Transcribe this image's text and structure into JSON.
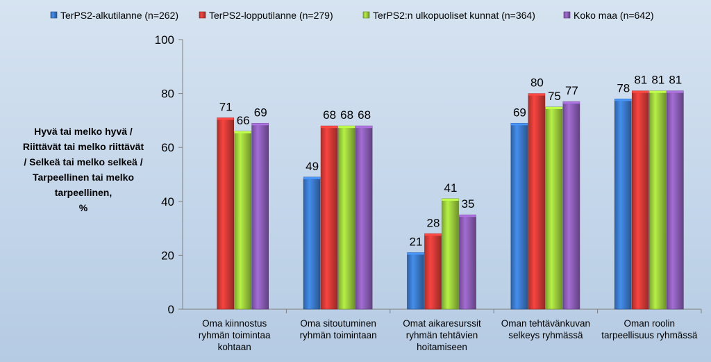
{
  "chart_data": {
    "type": "bar",
    "title": "",
    "ylabel_lines": [
      "Hyvä tai melko hyvä /",
      "Riittävät tai melko riittävät",
      "/ Selkeä tai melko selkeä /",
      "Tarpeellinen tai melko",
      "tarpeellinen,",
      "%"
    ],
    "ylim": [
      0,
      100
    ],
    "yticks": [
      0,
      20,
      40,
      60,
      80,
      100
    ],
    "grid": false,
    "legend_position": "top",
    "categories": [
      [
        "Oma kiinnostus",
        "ryhmän toimintaa",
        "kohtaan"
      ],
      [
        "Oma sitoutuminen",
        "ryhmän toimintaan"
      ],
      [
        "Omat aikaresurssit",
        "ryhmän tehtävien",
        "hoitamiseen"
      ],
      [
        "Oman tehtävänkuvan",
        "selkeys ryhmässä"
      ],
      [
        "Oman roolin",
        "tarpeellisuus ryhmässä"
      ]
    ],
    "series": [
      {
        "name": "TerPS2-alkutilanne (n=262)",
        "color": "#3a78c8",
        "values": [
          null,
          49,
          21,
          69,
          78
        ]
      },
      {
        "name": "TerPS2-lopputilanne (n=279)",
        "color": "#d23a36",
        "values": [
          71,
          68,
          28,
          80,
          81
        ]
      },
      {
        "name": "TerPS2:n ulkopuoliset kunnat (n=364)",
        "color": "#9acb3c",
        "values": [
          66,
          68,
          41,
          75,
          81
        ]
      },
      {
        "name": "Koko maa (n=642)",
        "color": "#8a5cb4",
        "values": [
          69,
          68,
          35,
          77,
          81
        ]
      }
    ]
  }
}
